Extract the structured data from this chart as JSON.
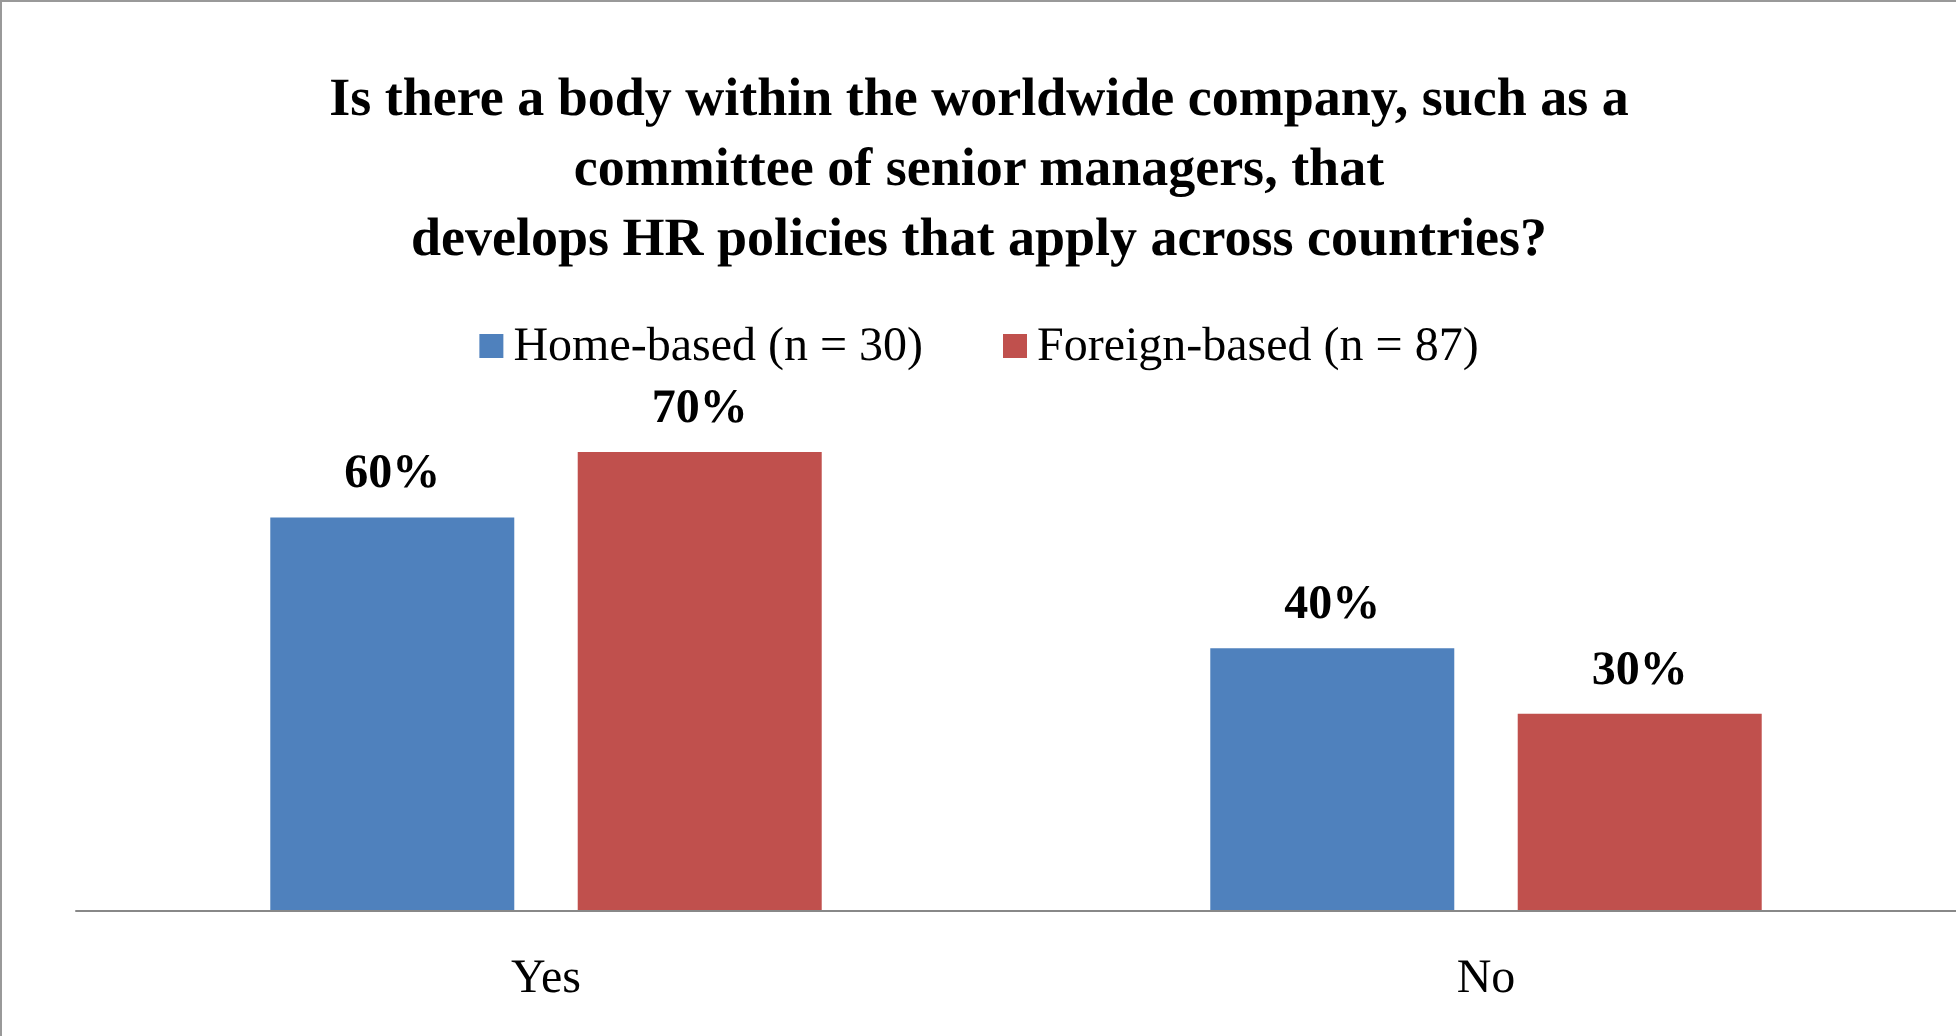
{
  "chart_data": {
    "type": "bar",
    "title": "Is there a body within the worldwide company, such as a\ncommittee of senior managers, that\ndevelops HR policies that apply across countries?",
    "categories": [
      "Yes",
      "No"
    ],
    "series": [
      {
        "name": "Home-based (n = 30)",
        "color": "#4f81bd",
        "values": [
          60,
          40
        ],
        "value_labels": [
          "60%",
          "40%"
        ]
      },
      {
        "name": "Foreign-based (n = 87)",
        "color": "#c0504d",
        "values": [
          70,
          30
        ],
        "value_labels": [
          "70%",
          "30%"
        ]
      }
    ],
    "legend": "top"
  }
}
